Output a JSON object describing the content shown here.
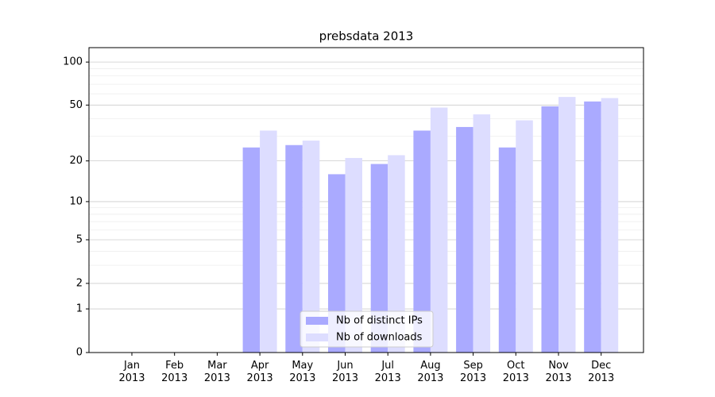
{
  "chart_data": {
    "type": "bar",
    "title": "prebsdata 2013",
    "categories": [
      "Jan\n2013",
      "Feb\n2013",
      "Mar\n2013",
      "Apr\n2013",
      "May\n2013",
      "Jun\n2013",
      "Jul\n2013",
      "Aug\n2013",
      "Sep\n2013",
      "Oct\n2013",
      "Nov\n2013",
      "Dec\n2013"
    ],
    "series": [
      {
        "name": "Nb of distinct IPs",
        "color": "#aaaaff",
        "values": [
          0,
          0,
          0,
          25,
          26,
          16,
          19,
          33,
          35,
          25,
          49,
          53
        ]
      },
      {
        "name": "Nb of downloads",
        "color": "#ddddff",
        "values": [
          0,
          0,
          0,
          33,
          28,
          21,
          22,
          48,
          43,
          39,
          57,
          56
        ]
      }
    ],
    "yscale": "log1p",
    "ylim": [
      0,
      126
    ],
    "yticks": [
      0,
      1,
      2,
      5,
      10,
      20,
      50,
      100
    ],
    "yminor": [
      3,
      4,
      6,
      7,
      8,
      9,
      30,
      40,
      60,
      70,
      80,
      90
    ],
    "grid": true,
    "legend": "lower center"
  }
}
